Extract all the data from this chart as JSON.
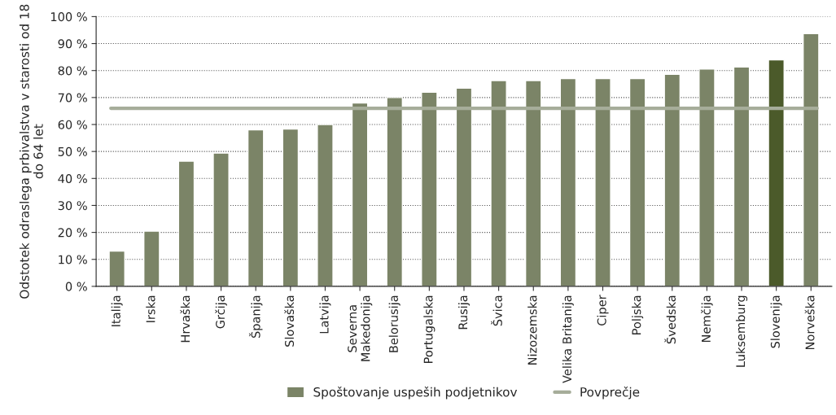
{
  "chart_data": {
    "type": "bar",
    "ylabel": "Odstotek odraslega prbivalstva v starosti od 18 do 64 let",
    "categories": [
      "Italija",
      "Irska",
      "Hrvaška",
      "Grčija",
      "Španija",
      "Slovaška",
      "Latvija",
      "Severna Makedonija",
      "Belorusija",
      "Portugalska",
      "Rusija",
      "Švica",
      "Nizozemska",
      "Velika Britanija",
      "Ciper",
      "Poljska",
      "Švedska",
      "Nemčija",
      "Luksemburg",
      "Slovenija",
      "Norveška"
    ],
    "series": [
      {
        "name": "Spoštovanje uspeših podjetnikov",
        "color": "#7b8467",
        "colors": [
          "#7b8467",
          "#7b8467",
          "#7b8467",
          "#7b8467",
          "#7b8467",
          "#7b8467",
          "#7b8467",
          "#7b8467",
          "#7b8467",
          "#7b8467",
          "#7b8467",
          "#7b8467",
          "#7b8467",
          "#7b8467",
          "#7b8467",
          "#7b8467",
          "#7b8467",
          "#7b8467",
          "#7b8467",
          "#4b5a2a",
          "#7b8467"
        ],
        "values": [
          13.1,
          20.5,
          46.4,
          49.4,
          58,
          58.3,
          60,
          68,
          70,
          72,
          73.5,
          76.3,
          76.3,
          77,
          77,
          77,
          78.6,
          80.6,
          81.3,
          84,
          93.7
        ]
      }
    ],
    "ylim": [
      0,
      100
    ],
    "yticks": [
      {
        "value": 0,
        "label": "0 %"
      },
      {
        "value": 10,
        "label": "10 %"
      },
      {
        "value": 20,
        "label": "20 %"
      },
      {
        "value": 30,
        "label": "30 %"
      },
      {
        "value": 40,
        "label": "40 %"
      },
      {
        "value": 50,
        "label": "50 %"
      },
      {
        "value": 60,
        "label": "60 %"
      },
      {
        "value": 70,
        "label": "70 %"
      },
      {
        "value": 80,
        "label": "80 %"
      },
      {
        "value": 90,
        "label": "90 %"
      },
      {
        "value": 100,
        "label": "100 %"
      }
    ],
    "ref_lines": [
      {
        "axis": "y",
        "value": 66,
        "label": "Povprečje",
        "color": "#a6ad9a",
        "line_style": "solid"
      }
    ],
    "grid": "y",
    "legend": "bottom"
  }
}
